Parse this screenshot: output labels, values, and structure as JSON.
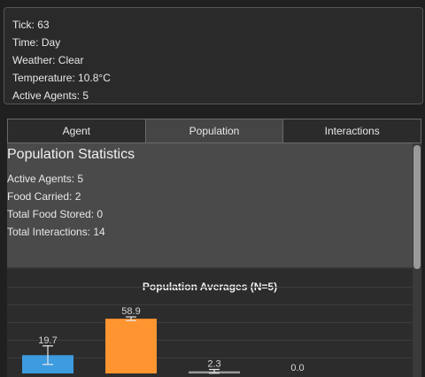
{
  "status": {
    "tick": "Tick: 63",
    "time": "Time: Day",
    "weather": "Weather: Clear",
    "temperature": "Temperature: 10.8°C",
    "active_agents": "Active Agents: 5"
  },
  "tabs": [
    {
      "label": "Agent"
    },
    {
      "label": "Population"
    },
    {
      "label": "Interactions"
    }
  ],
  "selected_tab": "Population",
  "population": {
    "title": "Population Statistics",
    "lines": [
      "Active Agents: 5",
      "Food Carried: 2",
      "Total Food Stored: 0",
      "Total Interactions: 14"
    ]
  },
  "chart_data": {
    "type": "bar",
    "title": "Population Averages (N=5)",
    "values": [
      19.7,
      58.9,
      2.3,
      0.0
    ],
    "value_labels": [
      "19.7",
      "58.9",
      "2.3",
      "0.0"
    ],
    "error_bars": [
      10,
      2,
      2,
      0
    ],
    "colors": [
      "#3d9be0",
      "#ff9530",
      "#9a9a9a",
      "#9a9a9a"
    ],
    "ylim": [
      0,
      75
    ],
    "grid": true
  }
}
